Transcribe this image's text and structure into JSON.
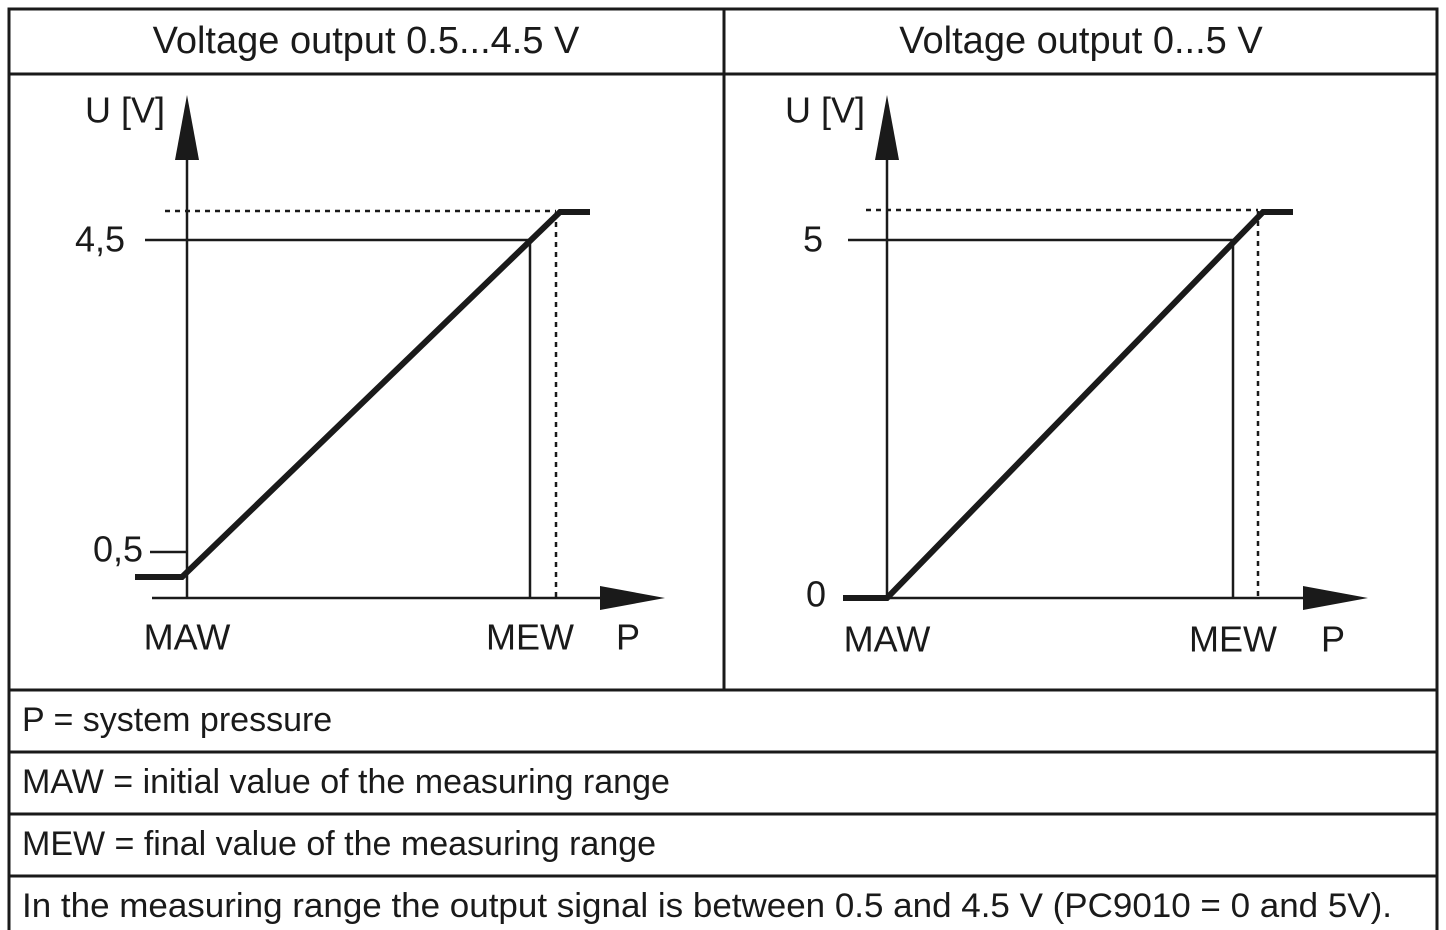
{
  "header": {
    "columns": [
      "Voltage output 0.5...4.5 V",
      "Voltage output 0...5 V"
    ]
  },
  "panels": [
    {
      "y_axis_label": "U [V]",
      "y_labels": [
        "4,5",
        "0,5"
      ],
      "x_labels": [
        "MAW",
        "MEW",
        "P"
      ]
    },
    {
      "y_axis_label": "U [V]",
      "y_labels": [
        "5",
        "0"
      ],
      "x_labels": [
        "MAW",
        "MEW",
        "P"
      ]
    }
  ],
  "notes": [
    "P = system pressure",
    "MAW = initial value of the measuring range",
    "MEW = final value of the measuring range",
    "In the measuring range the output signal is between 0.5 and 4.5 V (PC9010 = 0 and 5V)."
  ]
}
